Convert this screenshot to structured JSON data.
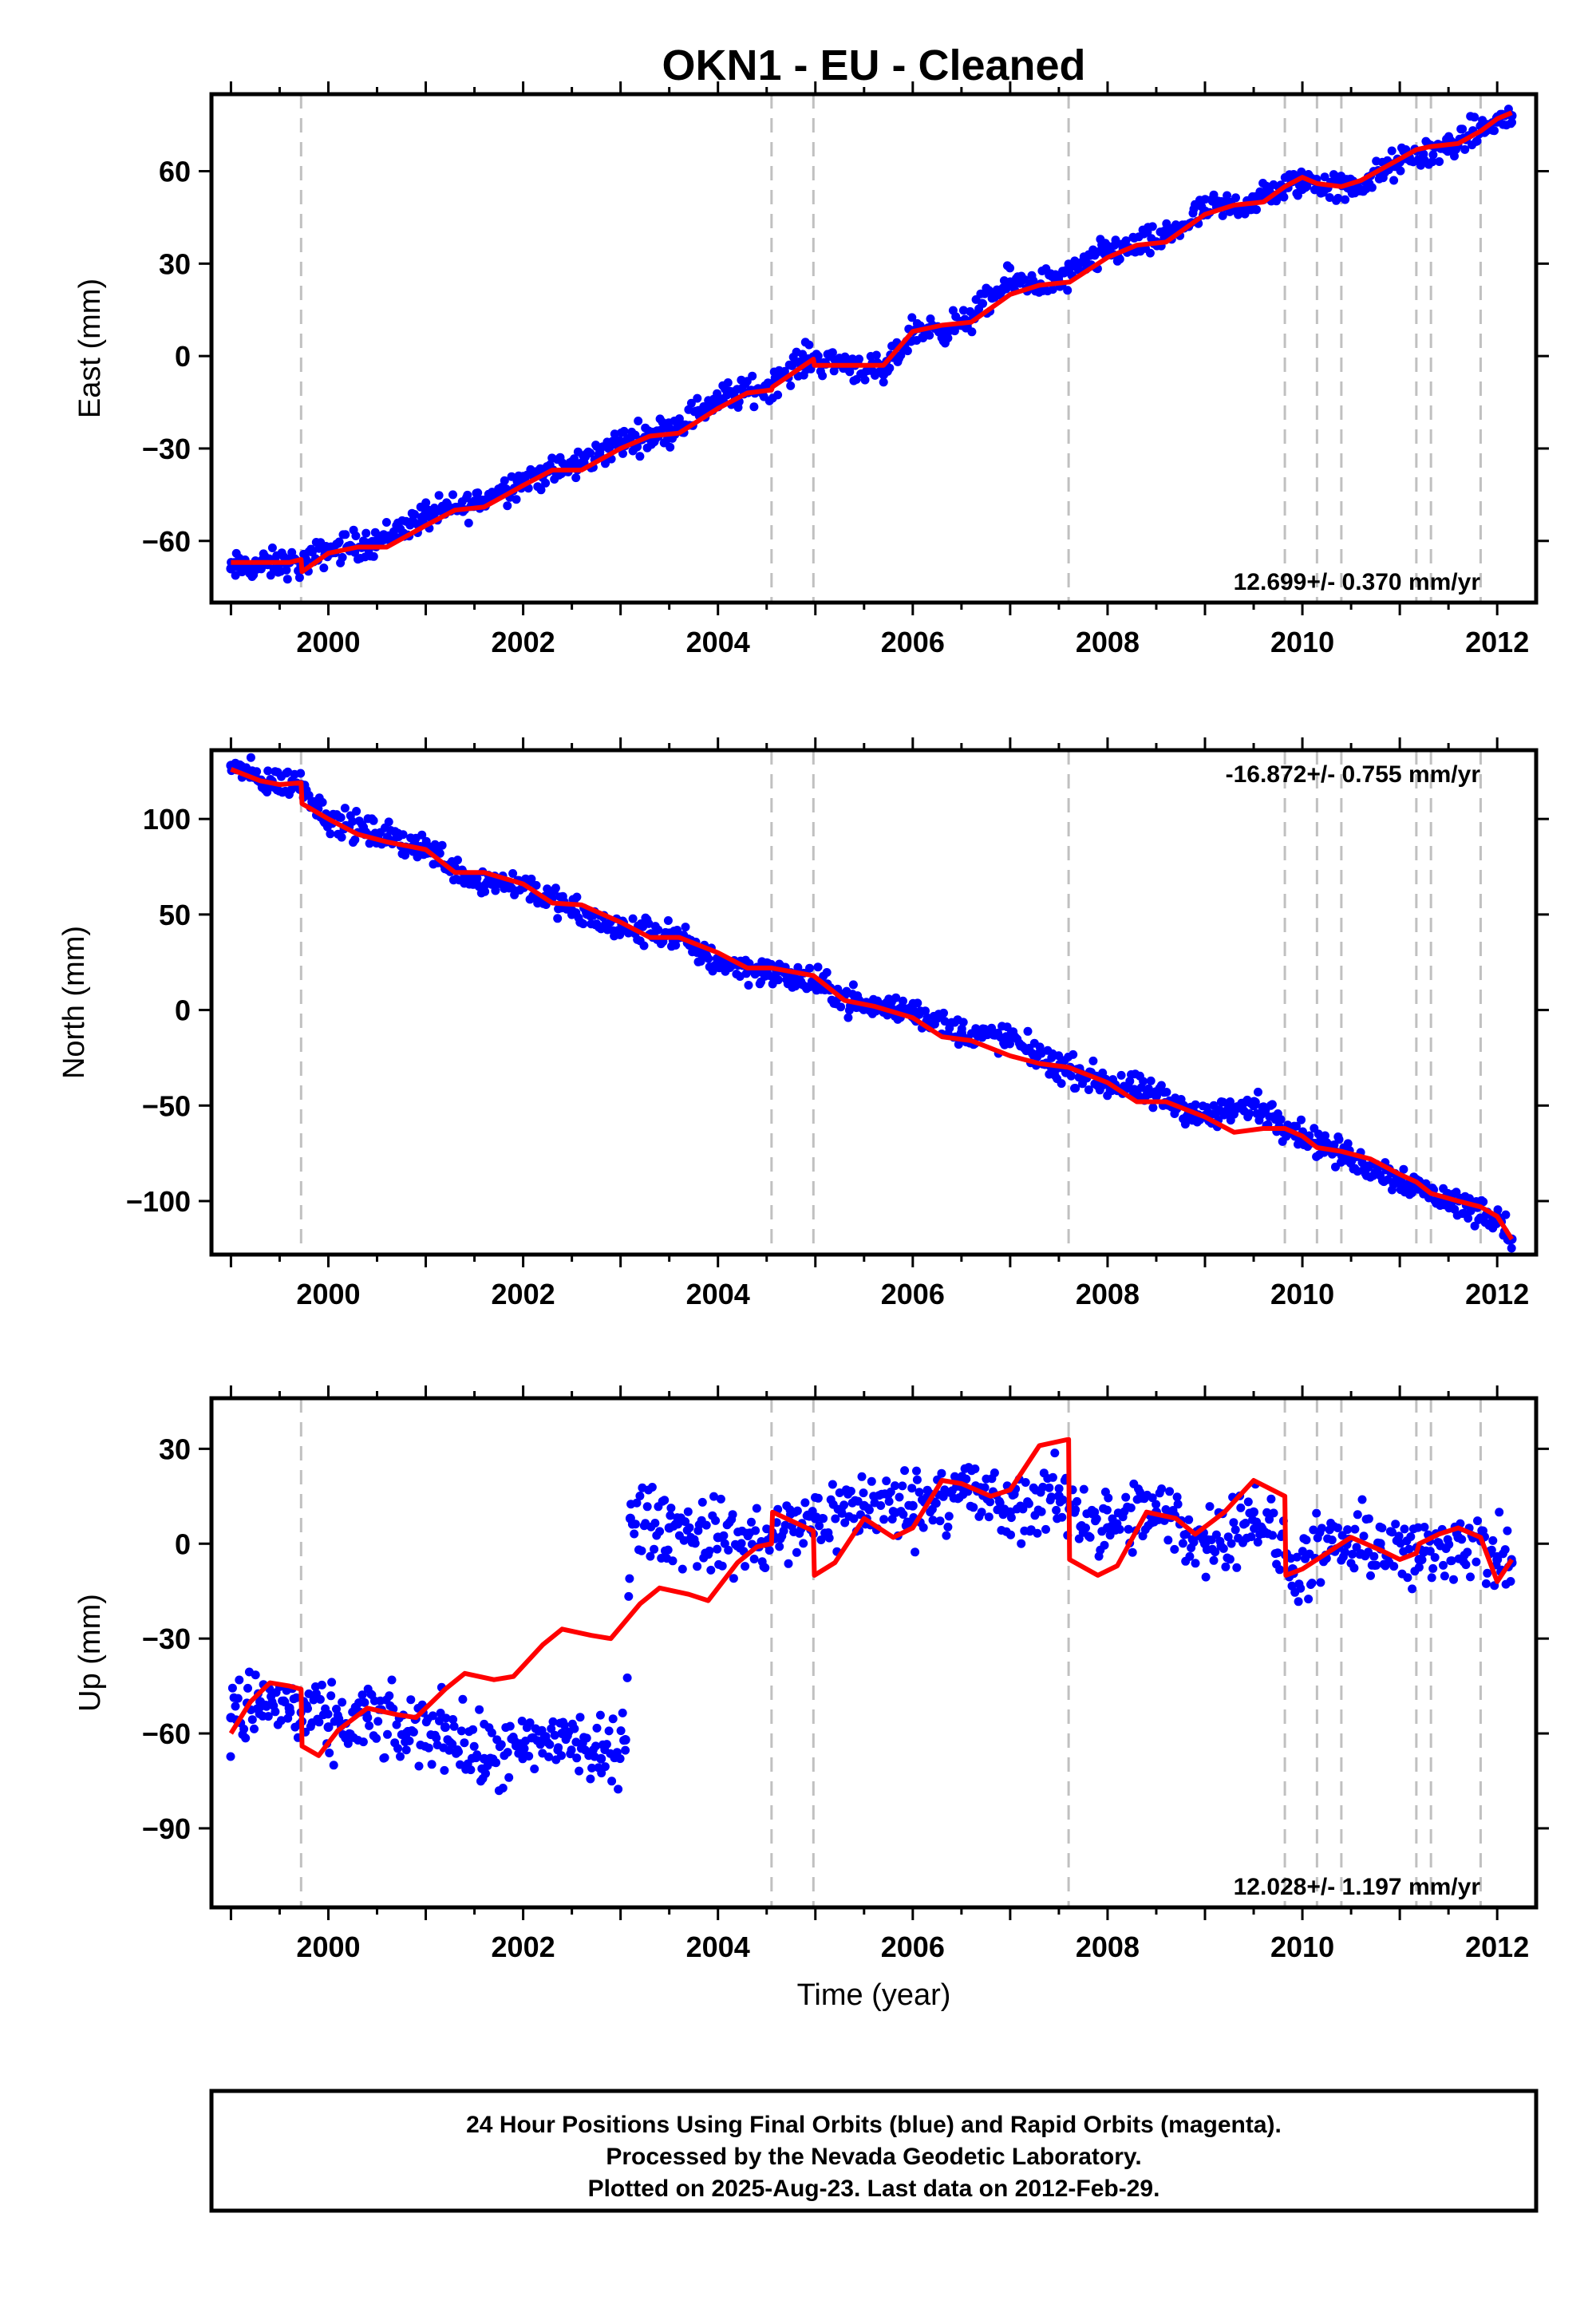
{
  "title": "OKN1  - EU - Cleaned",
  "x_axis_label": "Time (year)",
  "footer": {
    "line1": "24 Hour Positions Using Final Orbits (blue) and Rapid Orbits (magenta).",
    "line2": "Processed by the Nevada Geodetic Laboratory.",
    "line3": "Plotted on 2025-Aug-23. Last data on 2012-Feb-29."
  },
  "colors": {
    "data_points": "#0000ff",
    "model_fit": "#ff0000",
    "event_lines": "#c0c0c0",
    "frame": "#000000"
  },
  "chart_data": [
    {
      "type": "scatter",
      "component": "East",
      "ylabel": "East (mm)",
      "xlabel": "",
      "xlim": [
        1998.8,
        2012.4
      ],
      "ylim": [
        -80,
        85
      ],
      "xticks": [
        2000,
        2002,
        2004,
        2006,
        2008,
        2010,
        2012
      ],
      "yticks": [
        -60,
        -30,
        0,
        30,
        60
      ],
      "rate_label": "12.699+/- 0.370 mm/yr",
      "rate_position": "bottom-right",
      "event_lines": [
        1999.72,
        2004.55,
        2004.98,
        2007.6,
        2009.82,
        2010.15,
        2010.4,
        2011.17,
        2011.32,
        2011.83
      ],
      "series": [
        {
          "kind": "data",
          "x": [
            1999.0,
            1999.3,
            1999.6,
            1999.72,
            2000.0,
            2000.5,
            2001.0,
            2001.5,
            2002.0,
            2002.5,
            2003.0,
            2003.5,
            2004.0,
            2004.5,
            2004.9,
            2005.3,
            2005.7,
            2006.0,
            2006.5,
            2007.0,
            2007.5,
            2008.0,
            2008.5,
            2009.0,
            2009.5,
            2010.0,
            2010.5,
            2011.0,
            2011.5,
            2012.0,
            2012.15
          ],
          "y": [
            -69,
            -68,
            -67,
            -68,
            -63,
            -60,
            -52,
            -48,
            -40,
            -36,
            -28,
            -24,
            -14,
            -10,
            -1,
            -2,
            -6,
            8,
            10,
            24,
            24,
            34,
            37,
            47,
            50,
            57,
            54,
            63,
            68,
            76,
            78
          ]
        },
        {
          "kind": "model",
          "x": [
            1999.0,
            1999.3,
            1999.6,
            1999.72,
            1999.73,
            2000.0,
            2000.3,
            2000.6,
            2001.0,
            2001.3,
            2001.6,
            2002.0,
            2002.3,
            2002.6,
            2003.0,
            2003.3,
            2003.6,
            2004.0,
            2004.3,
            2004.55,
            2004.56,
            2004.98,
            2004.99,
            2005.3,
            2005.7,
            2006.0,
            2006.3,
            2006.6,
            2007.0,
            2007.3,
            2007.6,
            2007.61,
            2008.0,
            2008.3,
            2008.6,
            2009.0,
            2009.3,
            2009.6,
            2009.82,
            2010.0,
            2010.15,
            2010.4,
            2010.6,
            2011.0,
            2011.17,
            2011.32,
            2011.6,
            2011.83,
            2012.0,
            2012.15
          ],
          "y": [
            -67,
            -67,
            -67,
            -66,
            -70,
            -64,
            -62,
            -62,
            -55,
            -50,
            -49,
            -42,
            -37,
            -37,
            -30,
            -26,
            -25,
            -17,
            -12,
            -11,
            -10,
            -1,
            -3,
            -3,
            -3,
            8,
            10,
            11,
            20,
            23,
            24,
            24,
            32,
            36,
            37,
            46,
            49,
            50,
            55,
            58,
            56,
            55,
            57,
            64,
            67,
            68,
            69,
            73,
            77,
            79
          ]
        }
      ]
    },
    {
      "type": "scatter",
      "component": "North",
      "ylabel": "North (mm)",
      "xlabel": "",
      "xlim": [
        1998.8,
        2012.4
      ],
      "ylim": [
        -128,
        136
      ],
      "xticks": [
        2000,
        2002,
        2004,
        2006,
        2008,
        2010,
        2012
      ],
      "yticks": [
        -100,
        -50,
        0,
        50,
        100
      ],
      "rate_label": "-16.872+/- 0.755 mm/yr",
      "rate_position": "top-right",
      "event_lines": [
        1999.72,
        2004.55,
        2004.98,
        2007.6,
        2009.82,
        2010.15,
        2010.4,
        2011.17,
        2011.32,
        2011.83
      ],
      "series": [
        {
          "kind": "data",
          "x": [
            1999.0,
            1999.3,
            1999.72,
            2000.0,
            2000.5,
            2001.0,
            2001.5,
            2002.0,
            2002.5,
            2003.0,
            2003.5,
            2004.0,
            2004.5,
            2005.0,
            2005.5,
            2006.0,
            2006.5,
            2007.0,
            2007.5,
            2008.0,
            2008.5,
            2009.0,
            2009.5,
            2010.0,
            2010.5,
            2011.0,
            2011.5,
            2012.0,
            2012.15
          ],
          "y": [
            128,
            120,
            118,
            100,
            92,
            85,
            68,
            66,
            52,
            42,
            40,
            25,
            20,
            14,
            2,
            0,
            -12,
            -15,
            -30,
            -38,
            -45,
            -56,
            -50,
            -65,
            -78,
            -88,
            -100,
            -108,
            -120
          ]
        },
        {
          "kind": "model",
          "x": [
            1999.0,
            1999.3,
            1999.5,
            1999.72,
            1999.73,
            2000.0,
            2000.3,
            2000.6,
            2001.0,
            2001.3,
            2001.6,
            2002.0,
            2002.3,
            2002.6,
            2003.0,
            2003.3,
            2003.6,
            2004.0,
            2004.3,
            2004.55,
            2004.98,
            2005.3,
            2005.6,
            2006.0,
            2006.3,
            2006.6,
            2007.0,
            2007.3,
            2007.6,
            2008.0,
            2008.3,
            2008.6,
            2009.0,
            2009.3,
            2009.6,
            2009.82,
            2010.0,
            2010.15,
            2010.4,
            2010.7,
            2011.0,
            2011.17,
            2011.32,
            2011.6,
            2011.83,
            2012.0,
            2012.15
          ],
          "y": [
            126,
            120,
            118,
            119,
            108,
            100,
            92,
            88,
            84,
            72,
            72,
            66,
            56,
            55,
            46,
            38,
            38,
            30,
            22,
            22,
            18,
            5,
            2,
            -4,
            -14,
            -16,
            -24,
            -28,
            -30,
            -38,
            -48,
            -48,
            -56,
            -64,
            -62,
            -62,
            -66,
            -72,
            -74,
            -78,
            -86,
            -90,
            -96,
            -100,
            -103,
            -108,
            -120
          ]
        }
      ]
    },
    {
      "type": "scatter",
      "component": "Up",
      "ylabel": "Up (mm)",
      "xlabel": "Time (year)",
      "xlim": [
        1998.8,
        2012.4
      ],
      "ylim": [
        -115,
        46
      ],
      "xticks": [
        2000,
        2002,
        2004,
        2006,
        2008,
        2010,
        2012
      ],
      "yticks": [
        -90,
        -60,
        -30,
        0,
        30
      ],
      "rate_label": "12.028+/- 1.197 mm/yr",
      "rate_position": "bottom-right",
      "event_lines": [
        1999.72,
        2004.55,
        2004.98,
        2007.6,
        2009.82,
        2010.15,
        2010.4,
        2011.17,
        2011.32,
        2011.83
      ],
      "series": [
        {
          "kind": "data",
          "x": [
            1999.0,
            1999.3,
            1999.6,
            2000.0,
            2000.4,
            2000.8,
            2001.2,
            2001.6,
            2002.0,
            2002.4,
            2002.8,
            2003.05,
            2003.1,
            2003.5,
            2004.0,
            2004.5,
            2005.0,
            2005.5,
            2006.0,
            2006.5,
            2007.0,
            2007.5,
            2008.0,
            2008.5,
            2009.0,
            2009.5,
            2009.9,
            2010.3,
            2010.8,
            2011.2,
            2011.6,
            2012.0,
            2012.15
          ],
          "y": [
            -55,
            -50,
            -52,
            -58,
            -55,
            -60,
            -58,
            -68,
            -66,
            -60,
            -68,
            -62,
            8,
            5,
            2,
            0,
            8,
            12,
            12,
            18,
            10,
            15,
            5,
            10,
            0,
            10,
            -8,
            -2,
            0,
            -5,
            2,
            -5,
            -6
          ]
        },
        {
          "kind": "model",
          "x": [
            1999.0,
            1999.2,
            1999.4,
            1999.6,
            1999.72,
            1999.73,
            1999.9,
            2000.1,
            2000.4,
            2000.7,
            2000.9,
            2001.2,
            2001.4,
            2001.7,
            2001.9,
            2002.2,
            2002.4,
            2002.7,
            2002.9,
            2003.2,
            2003.4,
            2003.7,
            2003.9,
            2004.2,
            2004.4,
            2004.55,
            2004.56,
            2004.98,
            2004.99,
            2005.2,
            2005.5,
            2005.8,
            2006.0,
            2006.3,
            2006.5,
            2006.8,
            2007.0,
            2007.3,
            2007.6,
            2007.61,
            2007.9,
            2008.1,
            2008.4,
            2008.7,
            2008.9,
            2009.2,
            2009.5,
            2009.82,
            2009.83,
            2010.0,
            2010.15,
            2010.3,
            2010.5,
            2010.8,
            2011.0,
            2011.17,
            2011.2,
            2011.4,
            2011.6,
            2011.83,
            2012.0,
            2012.15
          ],
          "y": [
            -60,
            -50,
            -44,
            -45,
            -46,
            -64,
            -67,
            -59,
            -52,
            -54,
            -55,
            -46,
            -41,
            -43,
            -42,
            -32,
            -27,
            -29,
            -30,
            -19,
            -14,
            -16,
            -18,
            -6,
            -1,
            0,
            10,
            4,
            -10,
            -6,
            8,
            2,
            5,
            20,
            19,
            15,
            17,
            31,
            33,
            -5,
            -10,
            -7,
            10,
            8,
            3,
            10,
            20,
            15,
            -10,
            -8,
            -5,
            -2,
            2,
            -2,
            -5,
            -3,
            0,
            3,
            5,
            2,
            -12,
            -5
          ]
        }
      ]
    }
  ]
}
